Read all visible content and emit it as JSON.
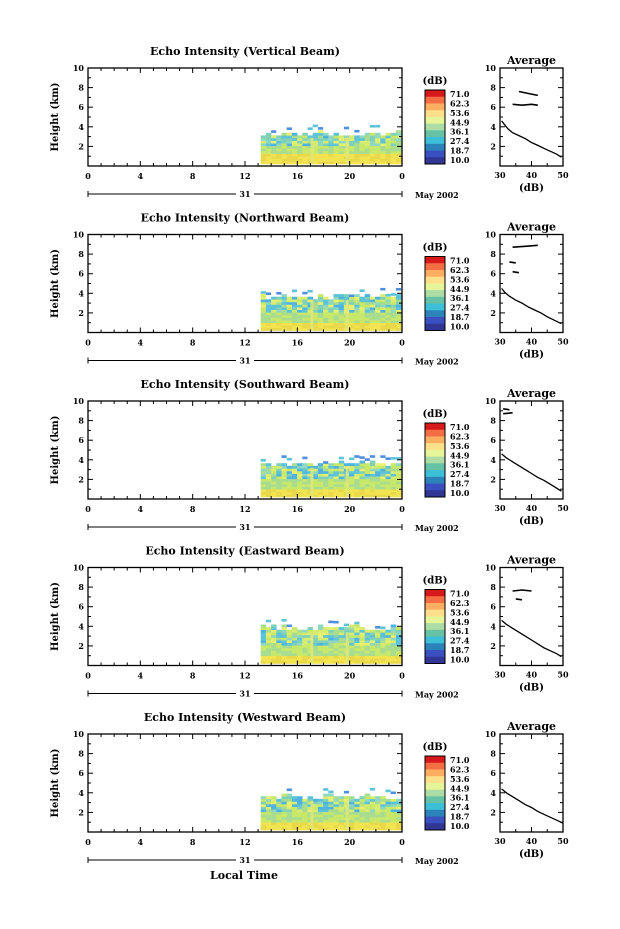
{
  "common": {
    "ylabel": "Height (km)",
    "cb_unit": "(dB)",
    "avg_title": "Average",
    "avg_xlabel": "(dB)",
    "date_label": "May 2002",
    "day_label": "31",
    "xlabel": "Local Time"
  },
  "colorbar": {
    "ticks": [
      "71.0",
      "62.3",
      "53.6",
      "44.9",
      "36.1",
      "27.4",
      "18.7",
      "10.0"
    ],
    "colors": [
      "#d7191c",
      "#f46d43",
      "#fdae61",
      "#fee08b",
      "#e6f598",
      "#abdda4",
      "#66c2a5",
      "#3dbfd8",
      "#2b83ba",
      "#3a4fc0",
      "#313695"
    ]
  },
  "chart_data": [
    {
      "type": "heatmap",
      "title": "Echo Intensity (Vertical Beam)",
      "xlabel": "Local Time",
      "ylabel": "Height (km)",
      "xlim": [
        0,
        24
      ],
      "ylim": [
        0,
        10
      ],
      "xticks": [
        "0",
        "4",
        "8",
        "12",
        "16",
        "20",
        "0"
      ],
      "yticks": [
        "2",
        "4",
        "6",
        "8",
        "10"
      ],
      "data_start_hour": 13.2,
      "data_top_km": 3.3,
      "average": {
        "xlim": [
          30,
          50
        ],
        "xticks": [
          "30",
          "40",
          "50"
        ],
        "points": [
          [
            30.5,
            4.6
          ],
          [
            31.5,
            4.2
          ],
          [
            32.5,
            3.8
          ],
          [
            34,
            3.4
          ],
          [
            36,
            3.1
          ],
          [
            38,
            2.8
          ],
          [
            40,
            2.4
          ],
          [
            42,
            2.1
          ],
          [
            44,
            1.8
          ],
          [
            46,
            1.5
          ],
          [
            48,
            1.2
          ],
          [
            49.5,
            0.9
          ]
        ],
        "fragments": [
          [
            [
              36,
              7.6
            ],
            [
              39,
              7.4
            ],
            [
              42,
              7.2
            ]
          ],
          [
            [
              34,
              6.3
            ],
            [
              37,
              6.2
            ],
            [
              40,
              6.3
            ],
            [
              42,
              6.2
            ]
          ]
        ]
      }
    },
    {
      "type": "heatmap",
      "title": "Echo Intensity (Northward Beam)",
      "xlabel": "Local Time",
      "ylabel": "Height (km)",
      "xlim": [
        0,
        24
      ],
      "ylim": [
        0,
        10
      ],
      "xticks": [
        "0",
        "4",
        "8",
        "12",
        "16",
        "20",
        "0"
      ],
      "yticks": [
        "2",
        "4",
        "6",
        "8",
        "10"
      ],
      "data_start_hour": 13.2,
      "data_top_km": 3.7,
      "average": {
        "xlim": [
          30,
          50
        ],
        "xticks": [
          "30",
          "40",
          "50"
        ],
        "points": [
          [
            30.5,
            4.5
          ],
          [
            31.5,
            4.1
          ],
          [
            33,
            3.7
          ],
          [
            35,
            3.3
          ],
          [
            37,
            3.0
          ],
          [
            39,
            2.6
          ],
          [
            41,
            2.3
          ],
          [
            43,
            2.0
          ],
          [
            45,
            1.6
          ],
          [
            47,
            1.3
          ],
          [
            49.5,
            0.9
          ]
        ],
        "fragments": [
          [
            [
              34,
              8.7
            ],
            [
              38,
              8.8
            ],
            [
              42,
              8.9
            ]
          ],
          [
            [
              33,
              7.2
            ],
            [
              35,
              7.1
            ]
          ],
          [
            [
              34,
              6.2
            ],
            [
              36,
              6.1
            ]
          ]
        ]
      }
    },
    {
      "type": "heatmap",
      "title": "Echo Intensity (Southward Beam)",
      "xlabel": "Local Time",
      "ylabel": "Height (km)",
      "xlim": [
        0,
        24
      ],
      "ylim": [
        0,
        10
      ],
      "xticks": [
        "0",
        "4",
        "8",
        "12",
        "16",
        "20",
        "0"
      ],
      "yticks": [
        "2",
        "4",
        "6",
        "8",
        "10"
      ],
      "data_start_hour": 13.2,
      "data_top_km": 3.6,
      "average": {
        "xlim": [
          30,
          50
        ],
        "xticks": [
          "30",
          "40",
          "50"
        ],
        "points": [
          [
            30.5,
            4.6
          ],
          [
            32,
            4.2
          ],
          [
            34,
            3.8
          ],
          [
            36,
            3.4
          ],
          [
            38,
            3.0
          ],
          [
            40,
            2.6
          ],
          [
            42,
            2.2
          ],
          [
            44,
            1.9
          ],
          [
            46,
            1.5
          ],
          [
            48,
            1.1
          ],
          [
            49.5,
            0.8
          ]
        ],
        "fragments": [
          [
            [
              31,
              9.2
            ],
            [
              33,
              9.1
            ]
          ],
          [
            [
              31,
              8.7
            ],
            [
              34,
              8.8
            ]
          ]
        ]
      }
    },
    {
      "type": "heatmap",
      "title": "Echo Intensity (Eastward Beam)",
      "xlabel": "Local Time",
      "ylabel": "Height (km)",
      "xlim": [
        0,
        24
      ],
      "ylim": [
        0,
        10
      ],
      "xticks": [
        "0",
        "4",
        "8",
        "12",
        "16",
        "20",
        "0"
      ],
      "yticks": [
        "2",
        "4",
        "6",
        "8",
        "10"
      ],
      "data_start_hour": 13.2,
      "data_top_km": 3.8,
      "average": {
        "xlim": [
          30,
          50
        ],
        "xticks": [
          "30",
          "40",
          "50"
        ],
        "points": [
          [
            30.5,
            4.6
          ],
          [
            32,
            4.2
          ],
          [
            34,
            3.8
          ],
          [
            36,
            3.4
          ],
          [
            38,
            3.0
          ],
          [
            40,
            2.6
          ],
          [
            42,
            2.2
          ],
          [
            44,
            1.8
          ],
          [
            46,
            1.5
          ],
          [
            48,
            1.2
          ],
          [
            49.5,
            0.9
          ]
        ],
        "fragments": [
          [
            [
              34,
              7.6
            ],
            [
              37,
              7.7
            ],
            [
              40,
              7.6
            ]
          ],
          [
            [
              35,
              6.8
            ],
            [
              37,
              6.7
            ]
          ]
        ]
      }
    },
    {
      "type": "heatmap",
      "title": "Echo Intensity (Westward Beam)",
      "xlabel": "Local Time",
      "ylabel": "Height (km)",
      "xlim": [
        0,
        24
      ],
      "ylim": [
        0,
        10
      ],
      "xticks": [
        "0",
        "4",
        "8",
        "12",
        "16",
        "20",
        "0"
      ],
      "yticks": [
        "2",
        "4",
        "6",
        "8",
        "10"
      ],
      "data_start_hour": 13.2,
      "data_top_km": 3.6,
      "average": {
        "xlim": [
          30,
          50
        ],
        "xticks": [
          "30",
          "40",
          "50"
        ],
        "points": [
          [
            30.5,
            4.4
          ],
          [
            32,
            4.0
          ],
          [
            34,
            3.6
          ],
          [
            36,
            3.2
          ],
          [
            38,
            2.8
          ],
          [
            40,
            2.5
          ],
          [
            42,
            2.1
          ],
          [
            44,
            1.8
          ],
          [
            46,
            1.5
          ],
          [
            48,
            1.2
          ],
          [
            50,
            0.9
          ]
        ],
        "fragments": []
      }
    }
  ]
}
